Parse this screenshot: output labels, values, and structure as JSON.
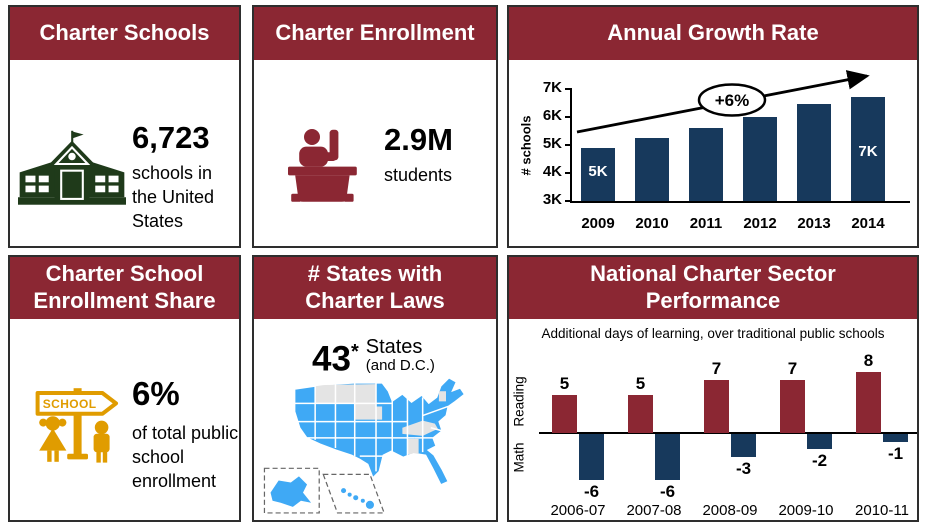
{
  "colors": {
    "header_maroon": "#8b2733",
    "bar_navy": "#17395c",
    "bar_maroon": "#8b2733",
    "icon_green": "#1f3a1a",
    "icon_orange": "#e09c00",
    "map_blue": "#3fa9f5",
    "map_gray": "#e4e4e4"
  },
  "panels": {
    "charter_schools": {
      "title": "Charter Schools",
      "stat": "6,723",
      "caption": "schools in the United States"
    },
    "charter_enrollment": {
      "title": "Charter Enrollment",
      "stat": "2.9M",
      "caption": "students"
    },
    "annual_growth_rate": {
      "title": "Annual Growth Rate"
    },
    "enrollment_share": {
      "title": "Charter School\nEnrollment Share",
      "stat": "6%",
      "caption": "of total public school enrollment",
      "sign_text": "SCHOOL"
    },
    "states_with_charter_laws": {
      "title": "# States with\nCharter Laws",
      "stat": "43",
      "stat_asterisk": "*",
      "unit": "States",
      "unit_note": "(and D.C.)"
    },
    "performance": {
      "title": "National Charter Sector\nPerformance",
      "subtitle": "Additional days of learning, over traditional public schools"
    }
  },
  "chart_data": [
    {
      "type": "bar",
      "title": "Annual Growth Rate",
      "ylabel": "# schools",
      "categories": [
        "2009",
        "2010",
        "2011",
        "2012",
        "2013",
        "2014"
      ],
      "values": [
        4900,
        5250,
        5600,
        6000,
        6450,
        6700
      ],
      "ylim": [
        3000,
        7000
      ],
      "ytick_labels": [
        "3K",
        "4K",
        "5K",
        "6K",
        "7K"
      ],
      "bar_value_labels": [
        "5K",
        "",
        "",
        "",
        "",
        "7K"
      ],
      "annotation": "+6%",
      "bar_color": "#17395c",
      "grid": false,
      "legend": "none"
    },
    {
      "type": "bar",
      "title": "National Charter Sector Performance",
      "subtitle": "Additional days of learning, over traditional public schools",
      "categories": [
        "2006-07",
        "2007-08",
        "2008-09",
        "2009-10",
        "2010-11"
      ],
      "series": [
        {
          "name": "Reading",
          "values": [
            5,
            5,
            7,
            7,
            8
          ],
          "color": "#8b2733"
        },
        {
          "name": "Math",
          "values": [
            -6,
            -6,
            -3,
            -2,
            -1
          ],
          "color": "#17395c"
        }
      ],
      "axis_labels": {
        "positive": "Reading",
        "negative": "Math"
      },
      "ylim": [
        -7,
        9
      ],
      "grid": false,
      "legend": "none"
    }
  ]
}
